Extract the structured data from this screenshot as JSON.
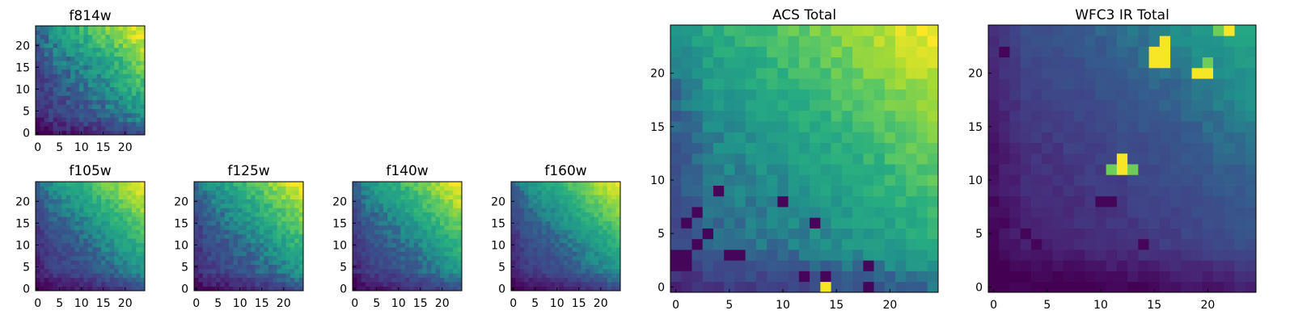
{
  "chart_data": [
    {
      "type": "heatmap",
      "id": "f814w",
      "title": "f814w",
      "grid_size": 25,
      "xlim": [
        -0.5,
        24.5
      ],
      "ylim": [
        -0.5,
        24.5
      ],
      "xticks": [
        0,
        5,
        10,
        15,
        20
      ],
      "yticks": [
        0,
        5,
        10,
        15,
        20
      ],
      "colormap": "viridis",
      "gradient": {
        "base": 0.2,
        "corner_gain": 0.8,
        "peak": [
          24,
          24
        ]
      },
      "noise": 0.18,
      "seed": 11
    },
    {
      "type": "heatmap",
      "id": "f105w",
      "title": "f105w",
      "grid_size": 25,
      "xlim": [
        -0.5,
        24.5
      ],
      "ylim": [
        -0.5,
        24.5
      ],
      "xticks": [
        0,
        5,
        10,
        15,
        20
      ],
      "yticks": [
        0,
        5,
        10,
        15,
        20
      ],
      "colormap": "viridis",
      "gradient": {
        "base": 0.18,
        "corner_gain": 0.82,
        "peak": [
          24,
          24
        ]
      },
      "noise": 0.12,
      "seed": 23
    },
    {
      "type": "heatmap",
      "id": "f125w",
      "title": "f125w",
      "grid_size": 25,
      "xlim": [
        -0.5,
        24.5
      ],
      "ylim": [
        -0.5,
        24.5
      ],
      "xticks": [
        0,
        5,
        10,
        15,
        20
      ],
      "yticks": [
        0,
        5,
        10,
        15,
        20
      ],
      "colormap": "viridis",
      "gradient": {
        "base": 0.2,
        "corner_gain": 0.8,
        "peak": [
          24,
          24
        ]
      },
      "noise": 0.14,
      "seed": 37
    },
    {
      "type": "heatmap",
      "id": "f140w",
      "title": "f140w",
      "grid_size": 25,
      "xlim": [
        -0.5,
        24.5
      ],
      "ylim": [
        -0.5,
        24.5
      ],
      "xticks": [
        0,
        5,
        10,
        15,
        20
      ],
      "yticks": [
        0,
        5,
        10,
        15,
        20
      ],
      "colormap": "viridis",
      "gradient": {
        "base": 0.2,
        "corner_gain": 0.8,
        "peak": [
          24,
          24
        ]
      },
      "noise": 0.12,
      "seed": 41
    },
    {
      "type": "heatmap",
      "id": "f160w",
      "title": "f160w",
      "grid_size": 25,
      "xlim": [
        -0.5,
        24.5
      ],
      "ylim": [
        -0.5,
        24.5
      ],
      "xticks": [
        0,
        5,
        10,
        15,
        20
      ],
      "yticks": [
        0,
        5,
        10,
        15,
        20
      ],
      "colormap": "viridis",
      "gradient": {
        "base": 0.18,
        "corner_gain": 0.82,
        "peak": [
          24,
          24
        ]
      },
      "noise": 0.1,
      "seed": 53
    },
    {
      "type": "heatmap",
      "id": "acs-total",
      "title": "ACS Total",
      "grid_size": 25,
      "xlim": [
        -0.5,
        24.5
      ],
      "ylim": [
        -0.5,
        24.5
      ],
      "xticks": [
        0,
        5,
        10,
        15,
        20
      ],
      "yticks": [
        0,
        5,
        10,
        15,
        20
      ],
      "colormap": "viridis",
      "gradient": {
        "base": 0.35,
        "corner_gain": 0.65,
        "peak": [
          24,
          24
        ]
      },
      "noise": 0.1,
      "seed": 67,
      "low_cells": [
        [
          0,
          3
        ],
        [
          1,
          3
        ],
        [
          0,
          2
        ],
        [
          1,
          2
        ],
        [
          1,
          6
        ],
        [
          2,
          4
        ],
        [
          5,
          3
        ],
        [
          6,
          3
        ],
        [
          3,
          5
        ],
        [
          4,
          9
        ],
        [
          10,
          8
        ],
        [
          13,
          6
        ],
        [
          14,
          1
        ],
        [
          18,
          2
        ],
        [
          18,
          0
        ],
        [
          12,
          1
        ],
        [
          2,
          7
        ]
      ],
      "high_cells": [
        [
          14,
          0
        ]
      ]
    },
    {
      "type": "heatmap",
      "id": "wfc3-ir-total",
      "title": "WFC3 IR Total",
      "grid_size": 25,
      "xlim": [
        -0.5,
        24.5
      ],
      "ylim": [
        -0.5,
        24.5
      ],
      "xticks": [
        0,
        5,
        10,
        15,
        20
      ],
      "yticks": [
        0,
        5,
        10,
        15,
        20
      ],
      "colormap": "viridis",
      "gradient": {
        "base": 0.1,
        "corner_gain": 0.5,
        "peak": [
          24,
          24
        ]
      },
      "noise": 0.06,
      "seed": 79,
      "high_cells": [
        [
          12,
          12
        ],
        [
          12,
          11
        ],
        [
          15,
          21
        ],
        [
          16,
          21
        ],
        [
          15,
          22
        ],
        [
          16,
          22
        ],
        [
          19,
          20
        ],
        [
          20,
          20
        ],
        [
          22,
          24
        ],
        [
          16,
          23
        ]
      ],
      "mid_cells": [
        [
          11,
          11
        ],
        [
          13,
          11
        ],
        [
          20,
          21
        ],
        [
          21,
          24
        ]
      ],
      "low_cells": [
        [
          1,
          22
        ],
        [
          0,
          8
        ],
        [
          10,
          8
        ],
        [
          11,
          8
        ],
        [
          14,
          4
        ],
        [
          0,
          4
        ],
        [
          1,
          6
        ],
        [
          3,
          5
        ],
        [
          4,
          4
        ],
        [
          2,
          0
        ],
        [
          3,
          0
        ]
      ]
    }
  ]
}
